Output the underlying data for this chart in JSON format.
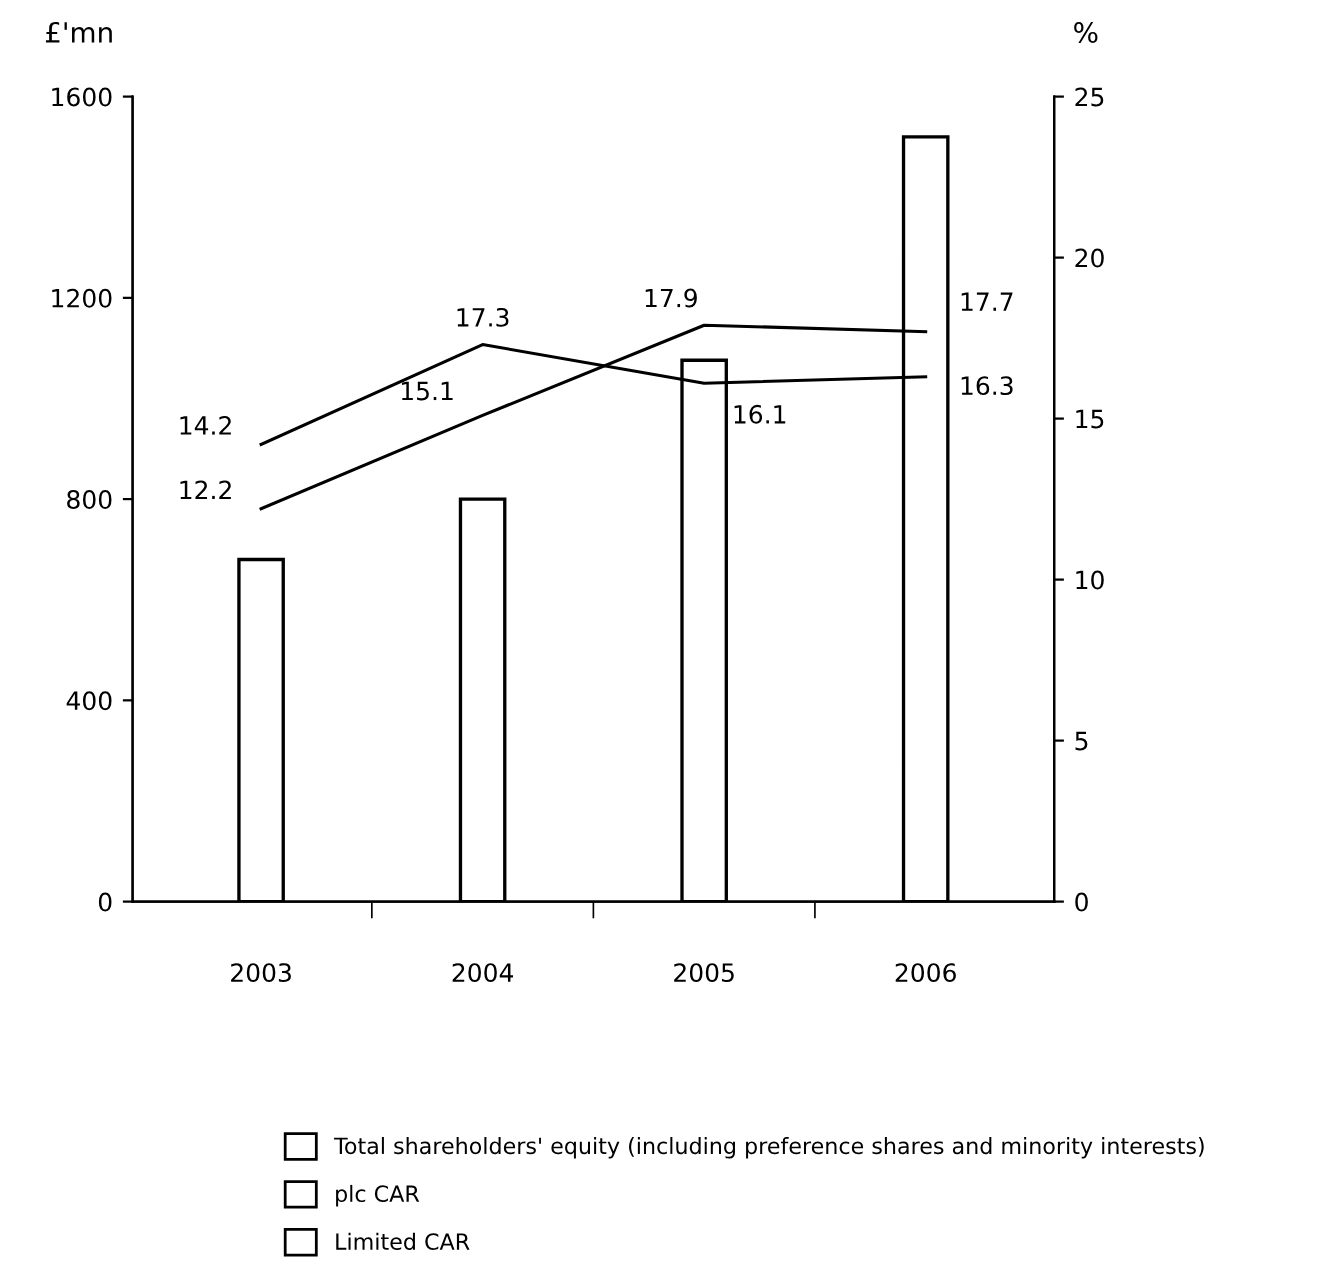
{
  "chart_data": {
    "type": "bar",
    "ylabel": "£'mn",
    "y2label": "%",
    "categories": [
      "2003",
      "2004",
      "2005",
      "2006"
    ],
    "series": [
      {
        "name": "Total shareholders' equity (including preference shares and minority interests)",
        "color": "#ffffff",
        "values": [
          680,
          800,
          1076,
          1520
        ]
      },
      {
        "name": "plc CAR",
        "type": "line",
        "axis": "y2",
        "color": "#000000",
        "values": [
          14.2,
          17.3,
          16.1,
          16.3
        ],
        "value_labels": [
          "14.2",
          "17.3",
          "16.1",
          "16.3"
        ]
      },
      {
        "name": "Limited CAR",
        "type": "line",
        "axis": "y2",
        "color": "#000000",
        "values": [
          12.2,
          15.1,
          17.9,
          17.7
        ],
        "value_labels": [
          "12.2",
          "15.1",
          "17.9",
          "17.7"
        ]
      }
    ],
    "ylim": [
      0,
      1600
    ],
    "yticks": [
      0,
      400,
      800,
      1200,
      1600
    ],
    "y2lim": [
      0,
      25
    ],
    "y2ticks": [
      0,
      5,
      10,
      15,
      20,
      25
    ],
    "grid": false,
    "legend": "bottom",
    "marker": "none",
    "line_style": "solid"
  }
}
